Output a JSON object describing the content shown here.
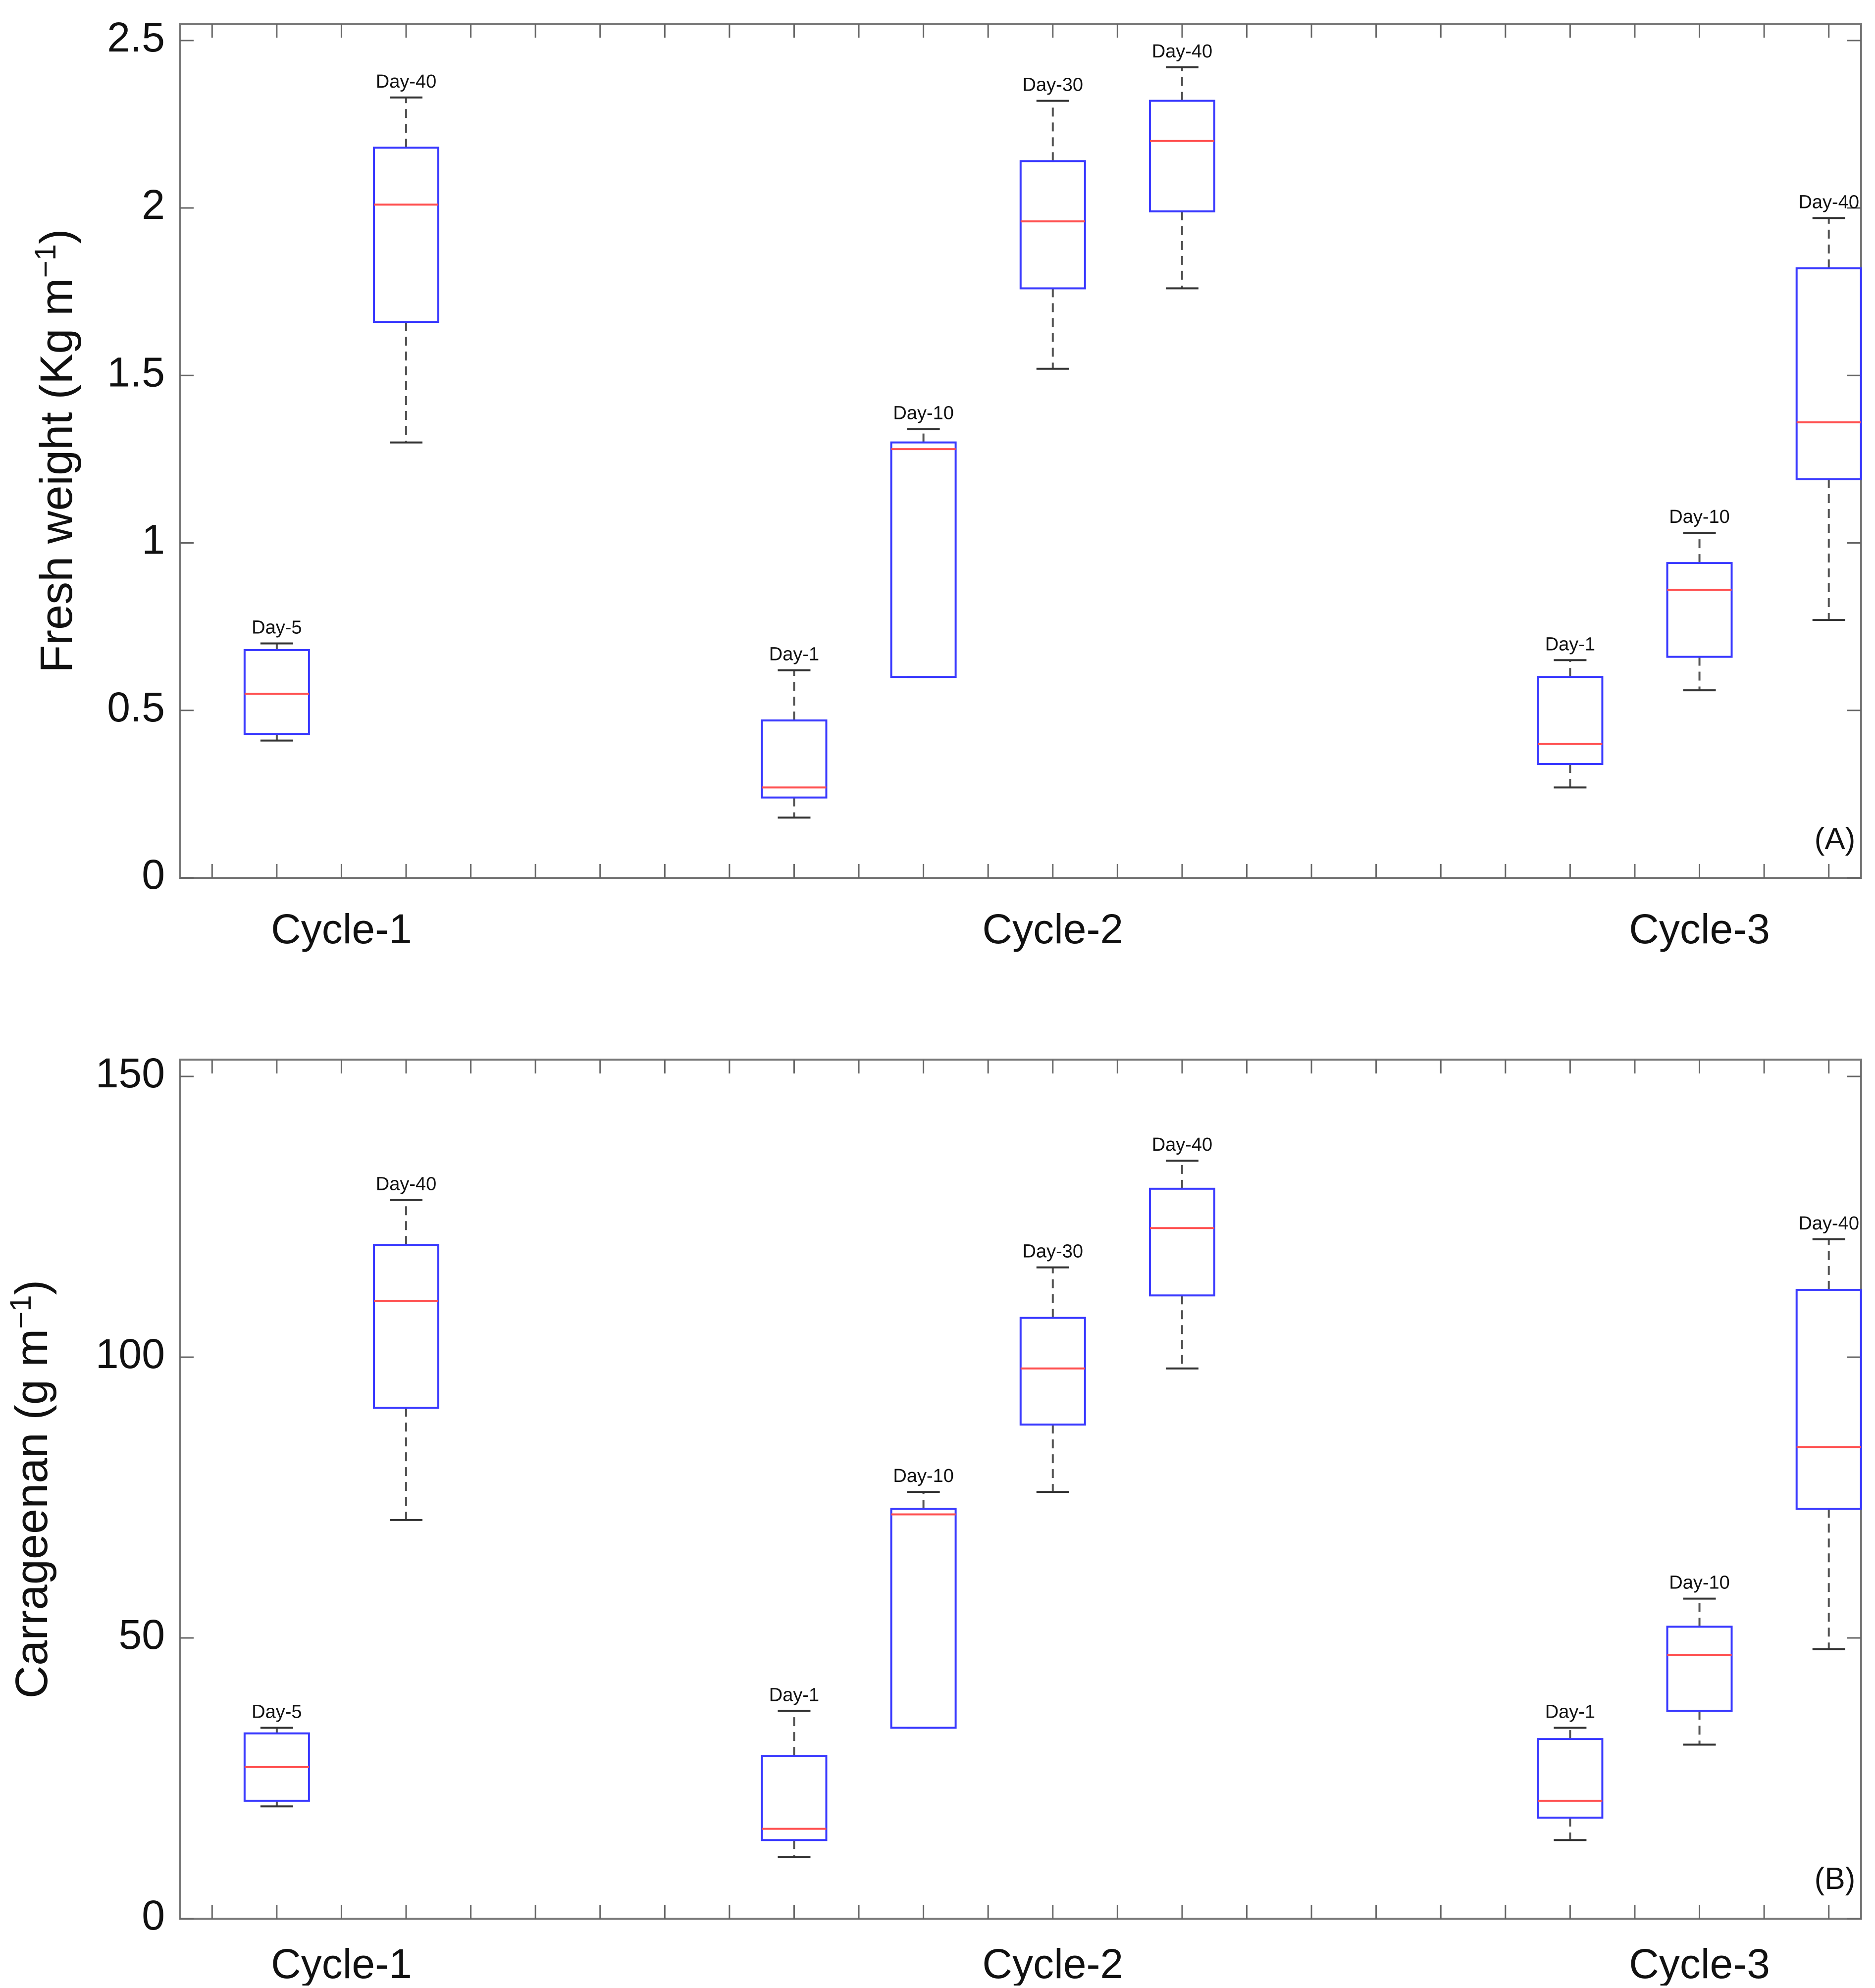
{
  "chart_data": [
    {
      "type": "boxplot",
      "panel_tag": "(A)",
      "ylabel": "Fresh weight (Kg m",
      "ylabel_sup": "−1",
      "ylabel_close": ")",
      "ylim": [
        0,
        2.55
      ],
      "yticks": [
        0,
        0.5,
        1,
        1.5,
        2,
        2.5
      ],
      "ytick_labels": [
        "0",
        "0.5",
        "1",
        "1.5",
        "2",
        "2.5"
      ],
      "x_slots": 26,
      "groups": [
        {
          "label": "Cycle-1",
          "center_slot": 2
        },
        {
          "label": "Cycle-2",
          "center_slot": 13
        },
        {
          "label": "Cycle-3",
          "center_slot": 23
        }
      ],
      "boxes": [
        {
          "label": "Day-5",
          "slot": 1,
          "min": 0.41,
          "q1": 0.43,
          "median": 0.55,
          "q3": 0.68,
          "max": 0.7
        },
        {
          "label": "Day-40",
          "slot": 3,
          "min": 1.3,
          "q1": 1.66,
          "median": 2.01,
          "q3": 2.18,
          "max": 2.33
        },
        {
          "label": "Day-1",
          "slot": 9,
          "min": 0.18,
          "q1": 0.24,
          "median": 0.27,
          "q3": 0.47,
          "max": 0.62
        },
        {
          "label": "Day-10",
          "slot": 11,
          "min": 0.6,
          "q1": 0.6,
          "median": 1.28,
          "q3": 1.3,
          "max": 1.34
        },
        {
          "label": "Day-30",
          "slot": 13,
          "min": 1.52,
          "q1": 1.76,
          "median": 1.96,
          "q3": 2.14,
          "max": 2.32
        },
        {
          "label": "Day-40",
          "slot": 15,
          "min": 1.76,
          "q1": 1.99,
          "median": 2.2,
          "q3": 2.32,
          "max": 2.42
        },
        {
          "label": "Day-1",
          "slot": 21,
          "min": 0.27,
          "q1": 0.34,
          "median": 0.4,
          "q3": 0.6,
          "max": 0.65
        },
        {
          "label": "Day-10",
          "slot": 23,
          "min": 0.56,
          "q1": 0.66,
          "median": 0.86,
          "q3": 0.94,
          "max": 1.03
        },
        {
          "label": "Day-40",
          "slot": 25,
          "min": 0.77,
          "q1": 1.19,
          "median": 1.36,
          "q3": 1.82,
          "max": 1.97
        }
      ]
    },
    {
      "type": "boxplot",
      "panel_tag": "(B)",
      "ylabel": "Carrageenan (g m",
      "ylabel_sup": "−1",
      "ylabel_close": ")",
      "ylim": [
        0,
        153
      ],
      "yticks": [
        0,
        50,
        100,
        150
      ],
      "ytick_labels": [
        "0",
        "50",
        "100",
        "150"
      ],
      "x_slots": 26,
      "groups": [
        {
          "label": "Cycle-1",
          "center_slot": 2
        },
        {
          "label": "Cycle-2",
          "center_slot": 13
        },
        {
          "label": "Cycle-3",
          "center_slot": 23
        }
      ],
      "boxes": [
        {
          "label": "Day-5",
          "slot": 1,
          "min": 20,
          "q1": 21,
          "median": 27,
          "q3": 33,
          "max": 34
        },
        {
          "label": "Day-40",
          "slot": 3,
          "min": 71,
          "q1": 91,
          "median": 110,
          "q3": 120,
          "max": 128
        },
        {
          "label": "Day-1",
          "slot": 9,
          "min": 11,
          "q1": 14,
          "median": 16,
          "q3": 29,
          "max": 37
        },
        {
          "label": "Day-10",
          "slot": 11,
          "min": 34,
          "q1": 34,
          "median": 72,
          "q3": 73,
          "max": 76
        },
        {
          "label": "Day-30",
          "slot": 13,
          "min": 76,
          "q1": 88,
          "median": 98,
          "q3": 107,
          "max": 116
        },
        {
          "label": "Day-40",
          "slot": 15,
          "min": 98,
          "q1": 111,
          "median": 123,
          "q3": 130,
          "max": 135
        },
        {
          "label": "Day-1",
          "slot": 21,
          "min": 14,
          "q1": 18,
          "median": 21,
          "q3": 32,
          "max": 34
        },
        {
          "label": "Day-10",
          "slot": 23,
          "min": 31,
          "q1": 37,
          "median": 47,
          "q3": 52,
          "max": 57
        },
        {
          "label": "Day-40",
          "slot": 25,
          "min": 48,
          "q1": 73,
          "median": 84,
          "q3": 112,
          "max": 121
        }
      ]
    }
  ]
}
